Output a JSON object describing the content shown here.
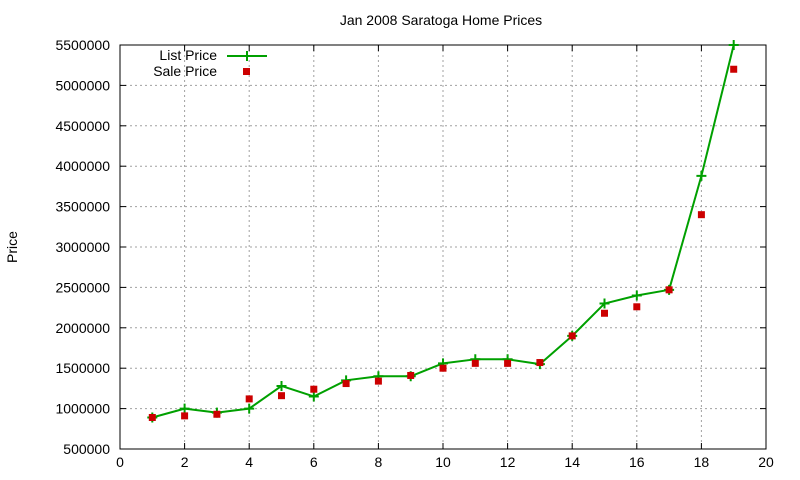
{
  "chart_data": {
    "type": "line",
    "title": "Jan 2008 Saratoga Home Prices",
    "xlabel": "",
    "ylabel": "Price",
    "xlim": [
      0,
      20
    ],
    "ylim": [
      500000,
      5500000
    ],
    "xticks": [
      0,
      2,
      4,
      6,
      8,
      10,
      12,
      14,
      16,
      18,
      20
    ],
    "yticks": [
      500000,
      1000000,
      1500000,
      2000000,
      2500000,
      3000000,
      3500000,
      4000000,
      4500000,
      5000000,
      5500000
    ],
    "grid": true,
    "legend_position": "top-left",
    "series": [
      {
        "name": "List Price",
        "style": "line-with-plus-markers",
        "color": "#00a000",
        "x": [
          1,
          2,
          3,
          4,
          5,
          6,
          7,
          8,
          9,
          10,
          11,
          12,
          13,
          14,
          15,
          16,
          17,
          18,
          19
        ],
        "values": [
          890000,
          1000000,
          950000,
          1000000,
          1280000,
          1150000,
          1350000,
          1400000,
          1400000,
          1560000,
          1610000,
          1610000,
          1550000,
          1900000,
          2300000,
          2400000,
          2470000,
          3880000,
          5500000
        ]
      },
      {
        "name": "Sale Price",
        "style": "square-markers",
        "color": "#cc0000",
        "x": [
          1,
          2,
          3,
          4,
          5,
          6,
          7,
          8,
          9,
          10,
          11,
          12,
          13,
          14,
          15,
          16,
          17,
          18,
          19
        ],
        "values": [
          890000,
          910000,
          930000,
          1120000,
          1160000,
          1240000,
          1310000,
          1340000,
          1410000,
          1500000,
          1560000,
          1560000,
          1570000,
          1900000,
          2180000,
          2260000,
          2470000,
          3400000,
          5200000
        ]
      }
    ]
  }
}
